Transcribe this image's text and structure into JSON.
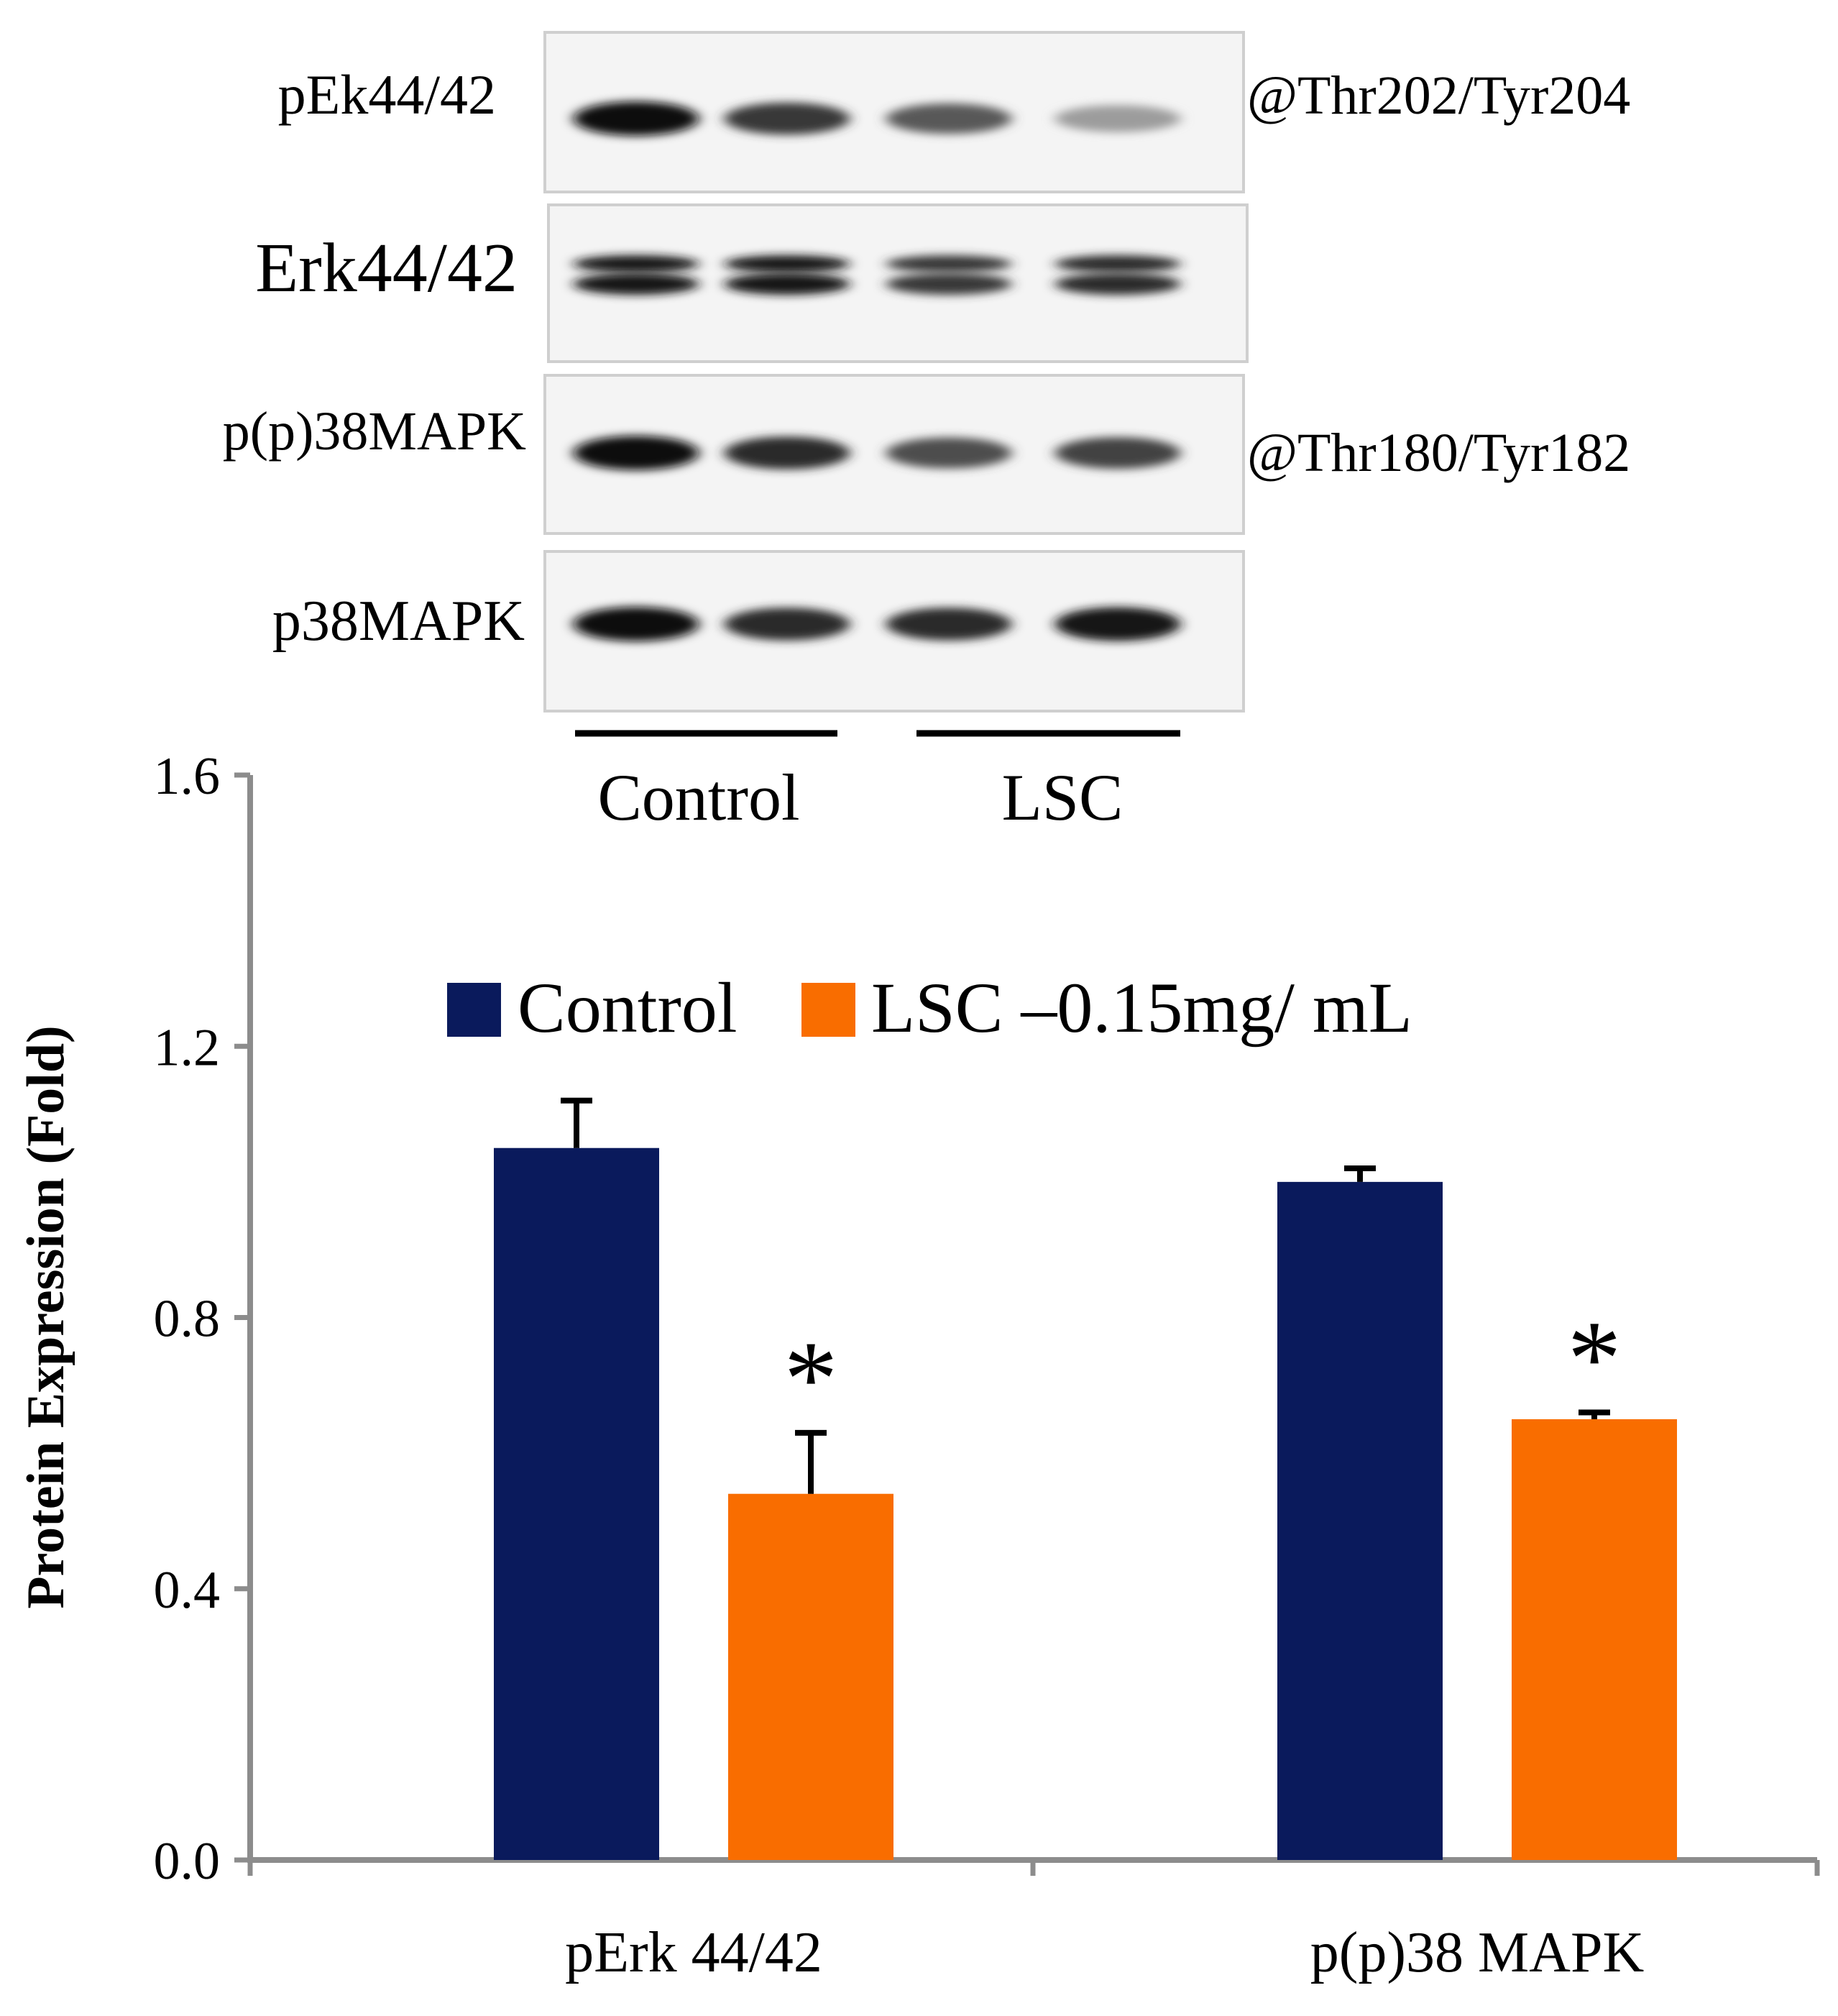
{
  "blot": {
    "rows": [
      {
        "label": "pEk44/42",
        "site": "@Thr202/Tyr204",
        "band_intensity": [
          1.0,
          0.8,
          0.65,
          0.35
        ]
      },
      {
        "label": "Erk44/42",
        "site": "",
        "band_intensity": [
          0.95,
          0.95,
          0.8,
          0.85
        ]
      },
      {
        "label": "p(p)38MAPK",
        "site": "@Thr180/Tyr182",
        "band_intensity": [
          1.0,
          0.85,
          0.7,
          0.75
        ]
      },
      {
        "label": "p38MAPK",
        "site": "",
        "band_intensity": [
          1.0,
          0.85,
          0.85,
          0.95
        ]
      }
    ],
    "groups": [
      "Control",
      "LSC"
    ]
  },
  "chart_data": {
    "type": "bar",
    "categories": [
      "pErk 44/42",
      "p(p)38 MAPK"
    ],
    "series": [
      {
        "name": "Control",
        "values": [
          1.05,
          1.0
        ],
        "errors": [
          0.07,
          0.02
        ]
      },
      {
        "name": "LSC –0.15mg/ mL",
        "values": [
          0.54,
          0.65
        ],
        "errors": [
          0.09,
          0.01
        ]
      }
    ],
    "significance": [
      "*",
      "*"
    ],
    "ylabel": "Protein Expression (Fold)",
    "xlabel": "",
    "ylim": [
      0,
      1.6
    ],
    "yticks": [
      "0.0",
      "0.4",
      "0.8",
      "1.2",
      "1.6"
    ],
    "grid": false,
    "legend": "top",
    "colors": {
      "Control": "#0a1a5c",
      "LSC": "#f96d00",
      "axis": "#8c8c8c"
    }
  }
}
